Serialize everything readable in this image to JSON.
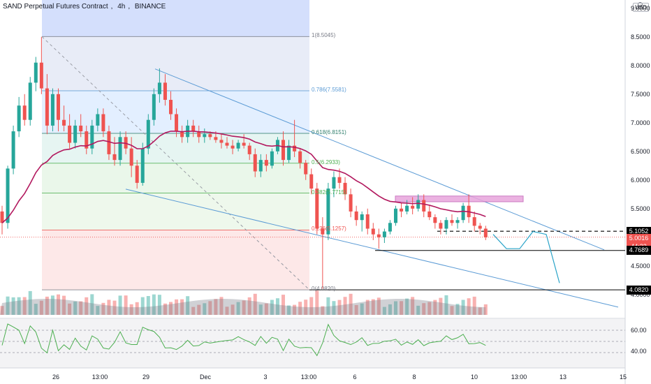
{
  "header": {
    "symbol": "SAND Perpetual Futures Contract",
    "interval": "4h",
    "exchange": "BINANCE",
    "currency": "USD"
  },
  "colors": {
    "up": "#26a69a",
    "down": "#ef5350",
    "ma": "#b2185e",
    "trend": "#5b9bd5",
    "rsi": "#4caf50",
    "zone": "#e8a5dc"
  },
  "x_axis_labels": [
    "26",
    "13:00",
    "29",
    "Dec",
    "3",
    "13:00",
    "6",
    "8",
    "10",
    "13:00",
    "13",
    "15"
  ],
  "price_axis": {
    "ticks": [
      "9.0000",
      "8.5000",
      "8.0000",
      "7.5000",
      "7.0000",
      "6.5000",
      "6.0000",
      "5.5000",
      "5.0000",
      "4.5000",
      "4.0000"
    ],
    "markers": [
      {
        "text": "5.1052",
        "kind": "level"
      },
      {
        "text": "5.0016",
        "kind": "last"
      },
      {
        "text": "44:33",
        "kind": "countdown"
      },
      {
        "text": "4.7689",
        "kind": "level"
      },
      {
        "text": "4.0820",
        "kind": "level"
      }
    ]
  },
  "rsi_axis": {
    "ticks": [
      "60.00",
      "40.00"
    ]
  },
  "fib_labels": [
    {
      "text": "1(8.5045)",
      "color": "#787b86"
    },
    {
      "text": "0.786(7.5581)",
      "color": "#5b9bd5"
    },
    {
      "text": "0.618(6.8151)",
      "color": "#2e7d6b"
    },
    {
      "text": "0.5(6.2933)",
      "color": "#4caf50"
    },
    {
      "text": "0.382(5.7715)",
      "color": "#4caf50"
    },
    {
      "text": "0.236(5.1257)",
      "color": "#ef5350"
    },
    {
      "text": "0(4.0820)",
      "color": "#787b86"
    }
  ],
  "chart_data": {
    "type": "candlestick",
    "title": "SAND Perpetual Futures Contract, 4h, BINANCE",
    "ylim": [
      3.9,
      9.05
    ],
    "fib_retracement": [
      {
        "level": 1,
        "price": 8.5045
      },
      {
        "level": 0.786,
        "price": 7.5581
      },
      {
        "level": 0.618,
        "price": 6.8151
      },
      {
        "level": 0.5,
        "price": 6.2933
      },
      {
        "level": 0.382,
        "price": 5.7715
      },
      {
        "level": 0.236,
        "price": 5.1257
      },
      {
        "level": 0,
        "price": 4.082
      }
    ],
    "horizontal_levels": [
      5.1052,
      4.7689,
      4.082
    ],
    "last_price": 5.0016,
    "resistance_zone": {
      "top": 5.72,
      "bottom": 5.62
    },
    "candles": [
      [
        5.45,
        5.55,
        5.05,
        5.25
      ],
      [
        5.25,
        6.25,
        5.15,
        6.2
      ],
      [
        6.2,
        6.95,
        6.1,
        6.85
      ],
      [
        6.85,
        7.45,
        6.75,
        7.3
      ],
      [
        7.3,
        7.5,
        6.95,
        7.05
      ],
      [
        7.05,
        7.8,
        6.95,
        7.7
      ],
      [
        7.7,
        8.15,
        7.55,
        8.05
      ],
      [
        8.05,
        8.5,
        7.5,
        7.6
      ],
      [
        7.6,
        7.85,
        6.8,
        6.95
      ],
      [
        6.95,
        7.6,
        6.85,
        7.5
      ],
      [
        7.5,
        7.6,
        6.85,
        7.05
      ],
      [
        7.05,
        7.3,
        6.85,
        6.95
      ],
      [
        6.95,
        7.15,
        6.55,
        6.65
      ],
      [
        6.65,
        7.05,
        6.55,
        6.95
      ],
      [
        6.95,
        7.15,
        6.75,
        6.85
      ],
      [
        6.85,
        6.95,
        6.45,
        6.55
      ],
      [
        6.55,
        7.05,
        6.45,
        6.95
      ],
      [
        6.95,
        7.25,
        6.85,
        7.15
      ],
      [
        7.15,
        7.25,
        6.75,
        6.85
      ],
      [
        6.85,
        6.95,
        6.35,
        6.45
      ],
      [
        6.45,
        6.75,
        6.25,
        6.35
      ],
      [
        6.35,
        6.85,
        6.25,
        6.75
      ],
      [
        6.75,
        6.85,
        6.45,
        6.55
      ],
      [
        6.55,
        6.75,
        6.05,
        6.25
      ],
      [
        6.25,
        6.35,
        5.85,
        5.95
      ],
      [
        5.95,
        6.65,
        5.9,
        6.55
      ],
      [
        6.55,
        7.15,
        6.45,
        7.05
      ],
      [
        7.05,
        7.6,
        6.95,
        7.5
      ],
      [
        7.5,
        7.95,
        7.35,
        7.7
      ],
      [
        7.7,
        7.85,
        7.3,
        7.4
      ],
      [
        7.4,
        7.55,
        7.05,
        7.15
      ],
      [
        7.15,
        7.25,
        6.75,
        6.85
      ],
      [
        6.85,
        6.95,
        6.65,
        6.75
      ],
      [
        6.75,
        7.05,
        6.65,
        6.95
      ],
      [
        6.95,
        7.05,
        6.75,
        6.85
      ],
      [
        6.85,
        6.95,
        6.65,
        6.75
      ],
      [
        6.75,
        6.9,
        6.65,
        6.8
      ],
      [
        6.8,
        6.85,
        6.7,
        6.75
      ],
      [
        6.75,
        6.85,
        6.65,
        6.7
      ],
      [
        6.7,
        6.8,
        6.55,
        6.65
      ],
      [
        6.65,
        6.75,
        6.55,
        6.6
      ],
      [
        6.6,
        6.7,
        6.45,
        6.55
      ],
      [
        6.55,
        6.7,
        6.5,
        6.65
      ],
      [
        6.65,
        6.8,
        6.55,
        6.6
      ],
      [
        6.6,
        6.65,
        6.35,
        6.45
      ],
      [
        6.45,
        6.55,
        6.05,
        6.15
      ],
      [
        6.15,
        6.45,
        6.05,
        6.35
      ],
      [
        6.35,
        6.45,
        6.15,
        6.25
      ],
      [
        6.25,
        6.55,
        6.2,
        6.5
      ],
      [
        6.5,
        6.75,
        6.45,
        6.7
      ],
      [
        6.7,
        6.85,
        6.25,
        6.35
      ],
      [
        6.35,
        6.7,
        6.3,
        6.6
      ],
      [
        6.6,
        7.05,
        6.4,
        6.5
      ],
      [
        6.5,
        6.55,
        6.2,
        6.3
      ],
      [
        6.3,
        6.35,
        6.0,
        6.1
      ],
      [
        6.1,
        6.2,
        5.75,
        5.85
      ],
      [
        5.85,
        5.95,
        5.05,
        5.15
      ],
      [
        5.15,
        5.35,
        4.1,
        5.05
      ],
      [
        5.05,
        5.95,
        4.95,
        5.85
      ],
      [
        5.85,
        6.15,
        5.7,
        6.05
      ],
      [
        6.05,
        6.2,
        5.85,
        5.95
      ],
      [
        5.95,
        6.05,
        5.65,
        5.75
      ],
      [
        5.75,
        5.85,
        5.35,
        5.45
      ],
      [
        5.45,
        5.55,
        5.2,
        5.3
      ],
      [
        5.3,
        5.45,
        5.1,
        5.4
      ],
      [
        5.4,
        5.5,
        5.05,
        5.15
      ],
      [
        5.15,
        5.25,
        4.95,
        5.05
      ],
      [
        5.05,
        5.15,
        4.8,
        5.0
      ],
      [
        5.0,
        5.15,
        4.9,
        5.1
      ],
      [
        5.1,
        5.3,
        5.05,
        5.25
      ],
      [
        5.25,
        5.55,
        5.2,
        5.5
      ],
      [
        5.5,
        5.6,
        5.35,
        5.45
      ],
      [
        5.45,
        5.65,
        5.4,
        5.55
      ],
      [
        5.55,
        5.7,
        5.4,
        5.5
      ],
      [
        5.5,
        5.75,
        5.45,
        5.65
      ],
      [
        5.65,
        5.75,
        5.35,
        5.45
      ],
      [
        5.45,
        5.55,
        5.3,
        5.35
      ],
      [
        5.35,
        5.4,
        5.15,
        5.25
      ],
      [
        5.25,
        5.3,
        5.05,
        5.15
      ],
      [
        5.15,
        5.35,
        5.05,
        5.3
      ],
      [
        5.3,
        5.4,
        5.2,
        5.25
      ],
      [
        5.25,
        5.35,
        5.15,
        5.3
      ],
      [
        5.3,
        5.6,
        5.25,
        5.55
      ],
      [
        5.55,
        5.75,
        5.25,
        5.35
      ],
      [
        5.35,
        5.45,
        5.1,
        5.2
      ],
      [
        5.2,
        5.25,
        5.05,
        5.15
      ],
      [
        5.15,
        5.2,
        4.95,
        5.0
      ]
    ],
    "projection_path": [
      [
        5.05,
        0
      ],
      [
        4.8,
        1
      ],
      [
        4.8,
        2
      ],
      [
        5.1,
        3
      ],
      [
        5.05,
        4
      ],
      [
        4.2,
        5
      ]
    ]
  }
}
